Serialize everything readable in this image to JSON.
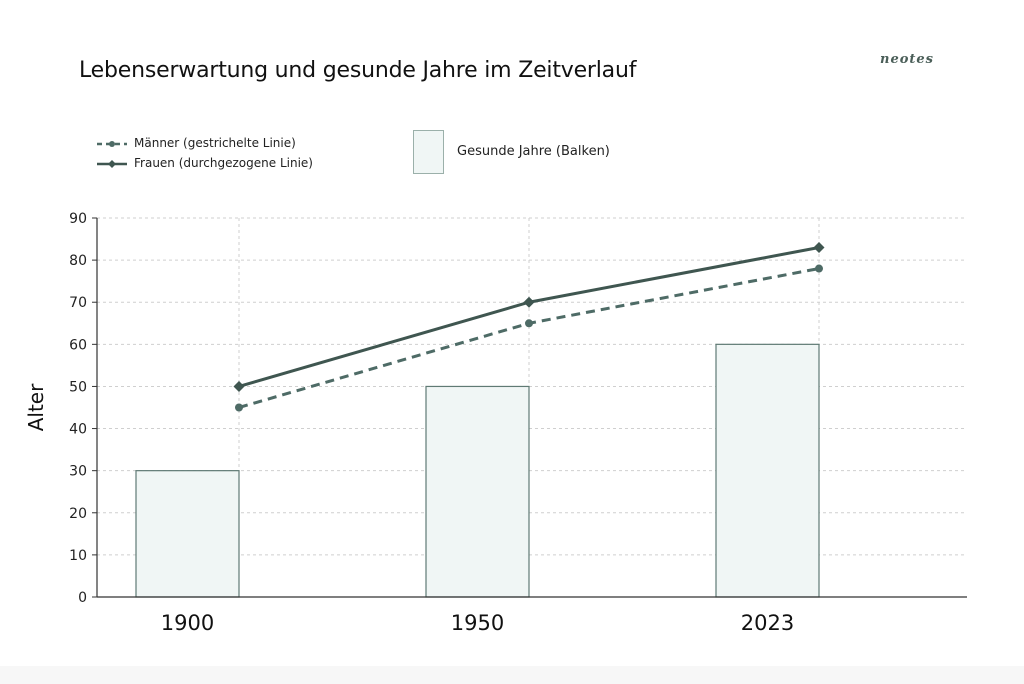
{
  "brand": "neotes",
  "chart_data": {
    "type": "bar",
    "title": "Lebenserwartung und gesunde Jahre im Zeitverlauf",
    "ylabel": "Alter",
    "xlabel": "",
    "categories": [
      "1900",
      "1950",
      "2023"
    ],
    "ylim": [
      0,
      90
    ],
    "yticks": [
      0,
      10,
      20,
      30,
      40,
      50,
      60,
      70,
      80,
      90
    ],
    "grid": true,
    "series": [
      {
        "name": "Gesunde Jahre (Balken)",
        "kind": "bar",
        "values": [
          30,
          50,
          60
        ],
        "color": "#f0f6f5",
        "stroke": "#5f7a74"
      },
      {
        "name": "Männer (gestrichelte Linie)",
        "kind": "line",
        "style": "dashed",
        "marker": "circle",
        "values": [
          45,
          65,
          78
        ],
        "color": "#4e6b66"
      },
      {
        "name": "Frauen (durchgezogene Linie)",
        "kind": "line",
        "style": "solid",
        "marker": "diamond",
        "values": [
          50,
          70,
          83
        ],
        "color": "#3f5650"
      }
    ]
  }
}
